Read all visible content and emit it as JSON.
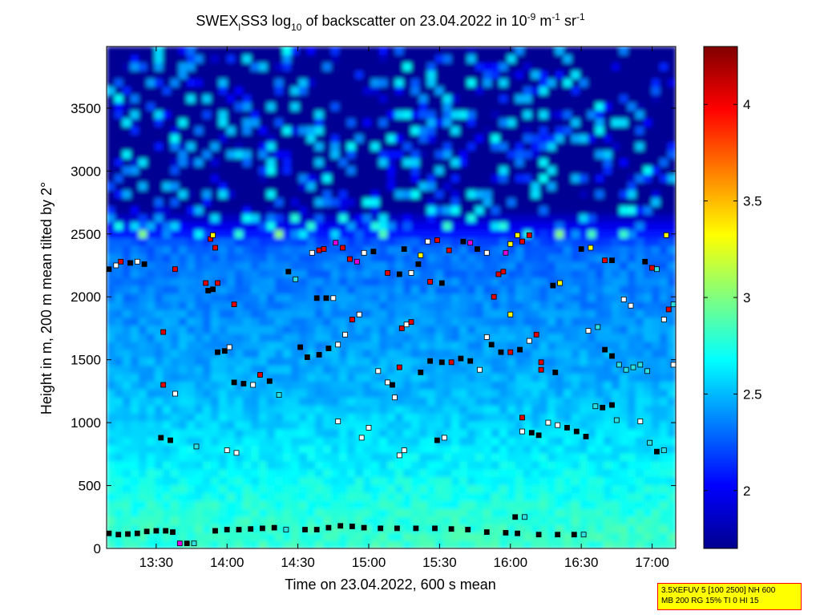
{
  "colors": {
    "background_low": "#00107a",
    "accent_high": "#800000",
    "info_box_bg": "#ffff00",
    "info_box_border": "#ff0000"
  },
  "chart_data": {
    "type": "heatmap",
    "title": {
      "prefix": "SWEX",
      "sub1": "l",
      "mid": "SS3 log",
      "sub2": "10",
      "after": " of backscatter on 23.04.2022 in 10",
      "sup1": "-9",
      "unit1": " m",
      "sup2": "-1",
      "unit2": " sr",
      "sup3": "-1"
    },
    "xlabel": "Time on 23.04.2022, 600 s mean",
    "ylabel": "Height in m, 200 m mean tilted by 2°",
    "x_range": [
      "13:09",
      "17:10"
    ],
    "ylim": [
      0,
      3990
    ],
    "x_ticks": [
      "13:30",
      "14:00",
      "14:30",
      "15:00",
      "15:30",
      "16:00",
      "16:30",
      "17:00"
    ],
    "y_ticks": [
      0,
      500,
      1000,
      1500,
      2000,
      2500,
      3000,
      3500
    ],
    "colorbar": {
      "range": [
        1.7,
        4.3
      ],
      "ticks": [
        "2",
        "2.5",
        "3",
        "3.5",
        "4"
      ],
      "colormap": "jet"
    },
    "field_description_levels": {
      "surface_0_150m": 2.8,
      "lower_150_1200m": 2.5,
      "middle_1200_2400m": 2.3,
      "upper_2400m_plus": 1.8
    },
    "markers": {
      "description": "cloud / layer detection squares, colour indicates backscatter level",
      "points": [
        {
          "t": "13:10",
          "h": 120,
          "c": "black"
        },
        {
          "t": "13:14",
          "h": 110,
          "c": "black"
        },
        {
          "t": "13:18",
          "h": 115,
          "c": "black"
        },
        {
          "t": "13:22",
          "h": 120,
          "c": "black"
        },
        {
          "t": "13:26",
          "h": 135,
          "c": "black"
        },
        {
          "t": "13:30",
          "h": 140,
          "c": "black"
        },
        {
          "t": "13:34",
          "h": 140,
          "c": "black"
        },
        {
          "t": "13:37",
          "h": 130,
          "c": "black"
        },
        {
          "t": "13:40",
          "h": 40,
          "c": "magenta"
        },
        {
          "t": "13:43",
          "h": 40,
          "c": "black"
        },
        {
          "t": "13:46",
          "h": 40,
          "c": "cyan"
        },
        {
          "t": "13:55",
          "h": 140,
          "c": "black"
        },
        {
          "t": "14:00",
          "h": 150,
          "c": "black"
        },
        {
          "t": "14:05",
          "h": 150,
          "c": "black"
        },
        {
          "t": "14:10",
          "h": 155,
          "c": "black"
        },
        {
          "t": "14:15",
          "h": 160,
          "c": "black"
        },
        {
          "t": "14:20",
          "h": 165,
          "c": "black"
        },
        {
          "t": "14:25",
          "h": 150,
          "c": "cyan"
        },
        {
          "t": "14:33",
          "h": 150,
          "c": "black"
        },
        {
          "t": "14:38",
          "h": 150,
          "c": "black"
        },
        {
          "t": "14:43",
          "h": 165,
          "c": "black"
        },
        {
          "t": "14:48",
          "h": 180,
          "c": "black"
        },
        {
          "t": "14:53",
          "h": 175,
          "c": "black"
        },
        {
          "t": "14:58",
          "h": 165,
          "c": "black"
        },
        {
          "t": "15:05",
          "h": 160,
          "c": "black"
        },
        {
          "t": "15:12",
          "h": 160,
          "c": "black"
        },
        {
          "t": "15:20",
          "h": 160,
          "c": "black"
        },
        {
          "t": "15:28",
          "h": 160,
          "c": "black"
        },
        {
          "t": "15:35",
          "h": 155,
          "c": "black"
        },
        {
          "t": "15:42",
          "h": 150,
          "c": "black"
        },
        {
          "t": "15:50",
          "h": 130,
          "c": "black"
        },
        {
          "t": "15:58",
          "h": 125,
          "c": "black"
        },
        {
          "t": "16:03",
          "h": 120,
          "c": "black"
        },
        {
          "t": "16:02",
          "h": 250,
          "c": "black"
        },
        {
          "t": "16:06",
          "h": 250,
          "c": "cyan"
        },
        {
          "t": "16:12",
          "h": 110,
          "c": "black"
        },
        {
          "t": "16:20",
          "h": 110,
          "c": "black"
        },
        {
          "t": "16:27",
          "h": 110,
          "c": "black"
        },
        {
          "t": "16:31",
          "h": 110,
          "c": "cyan"
        },
        {
          "t": "13:10",
          "h": 2220,
          "c": "black"
        },
        {
          "t": "13:13",
          "h": 2250,
          "c": "white"
        },
        {
          "t": "13:15",
          "h": 2280,
          "c": "red"
        },
        {
          "t": "13:19",
          "h": 2270,
          "c": "black"
        },
        {
          "t": "13:22",
          "h": 2280,
          "c": "white"
        },
        {
          "t": "13:25",
          "h": 2260,
          "c": "black"
        },
        {
          "t": "13:38",
          "h": 2220,
          "c": "red"
        },
        {
          "t": "13:51",
          "h": 2110,
          "c": "red"
        },
        {
          "t": "13:52",
          "h": 2050,
          "c": "black"
        },
        {
          "t": "13:54",
          "h": 2060,
          "c": "black"
        },
        {
          "t": "13:53",
          "h": 2460,
          "c": "red"
        },
        {
          "t": "13:54",
          "h": 2490,
          "c": "yellow"
        },
        {
          "t": "13:56",
          "h": 2110,
          "c": "red"
        },
        {
          "t": "13:55",
          "h": 2390,
          "c": "red"
        },
        {
          "t": "13:56",
          "h": 1560,
          "c": "black"
        },
        {
          "t": "13:59",
          "h": 1570,
          "c": "black"
        },
        {
          "t": "14:01",
          "h": 1600,
          "c": "white"
        },
        {
          "t": "14:03",
          "h": 1940,
          "c": "red"
        },
        {
          "t": "14:03",
          "h": 1320,
          "c": "black"
        },
        {
          "t": "14:07",
          "h": 1310,
          "c": "black"
        },
        {
          "t": "14:11",
          "h": 1300,
          "c": "white"
        },
        {
          "t": "14:14",
          "h": 1380,
          "c": "red"
        },
        {
          "t": "14:18",
          "h": 1330,
          "c": "black"
        },
        {
          "t": "13:33",
          "h": 1300,
          "c": "red"
        },
        {
          "t": "13:33",
          "h": 1720,
          "c": "red"
        },
        {
          "t": "13:38",
          "h": 1230,
          "c": "white"
        },
        {
          "t": "13:32",
          "h": 880,
          "c": "black"
        },
        {
          "t": "13:36",
          "h": 860,
          "c": "black"
        },
        {
          "t": "13:47",
          "h": 810,
          "c": "cyan"
        },
        {
          "t": "14:00",
          "h": 780,
          "c": "white"
        },
        {
          "t": "14:04",
          "h": 760,
          "c": "white"
        },
        {
          "t": "14:22",
          "h": 1220,
          "c": "cyan"
        },
        {
          "t": "14:26",
          "h": 2200,
          "c": "black"
        },
        {
          "t": "14:29",
          "h": 2140,
          "c": "cyan"
        },
        {
          "t": "14:31",
          "h": 1600,
          "c": "black"
        },
        {
          "t": "14:34",
          "h": 1520,
          "c": "black"
        },
        {
          "t": "14:39",
          "h": 1540,
          "c": "black"
        },
        {
          "t": "14:43",
          "h": 1590,
          "c": "black"
        },
        {
          "t": "14:47",
          "h": 1620,
          "c": "white"
        },
        {
          "t": "14:50",
          "h": 1700,
          "c": "white"
        },
        {
          "t": "14:53",
          "h": 1820,
          "c": "red"
        },
        {
          "t": "14:56",
          "h": 1860,
          "c": "white"
        },
        {
          "t": "14:36",
          "h": 2350,
          "c": "white"
        },
        {
          "t": "14:39",
          "h": 2370,
          "c": "red"
        },
        {
          "t": "14:41",
          "h": 2380,
          "c": "red"
        },
        {
          "t": "14:38",
          "h": 1990,
          "c": "black"
        },
        {
          "t": "14:42",
          "h": 1990,
          "c": "black"
        },
        {
          "t": "14:45",
          "h": 1990,
          "c": "white"
        },
        {
          "t": "14:46",
          "h": 2430,
          "c": "magenta"
        },
        {
          "t": "14:49",
          "h": 2390,
          "c": "red"
        },
        {
          "t": "14:52",
          "h": 2300,
          "c": "red"
        },
        {
          "t": "14:55",
          "h": 2280,
          "c": "magenta"
        },
        {
          "t": "14:58",
          "h": 2350,
          "c": "white"
        },
        {
          "t": "15:02",
          "h": 2360,
          "c": "black"
        },
        {
          "t": "14:47",
          "h": 1010,
          "c": "white"
        },
        {
          "t": "14:57",
          "h": 880,
          "c": "white"
        },
        {
          "t": "15:00",
          "h": 960,
          "c": "white"
        },
        {
          "t": "15:04",
          "h": 1410,
          "c": "white"
        },
        {
          "t": "15:08",
          "h": 1320,
          "c": "white"
        },
        {
          "t": "15:10",
          "h": 1300,
          "c": "black"
        },
        {
          "t": "15:11",
          "h": 1200,
          "c": "white"
        },
        {
          "t": "15:14",
          "h": 1750,
          "c": "red"
        },
        {
          "t": "15:16",
          "h": 1780,
          "c": "white"
        },
        {
          "t": "15:13",
          "h": 1440,
          "c": "red"
        },
        {
          "t": "15:18",
          "h": 1800,
          "c": "red"
        },
        {
          "t": "15:08",
          "h": 2190,
          "c": "red"
        },
        {
          "t": "15:13",
          "h": 2180,
          "c": "black"
        },
        {
          "t": "15:18",
          "h": 2190,
          "c": "white"
        },
        {
          "t": "15:21",
          "h": 2260,
          "c": "black"
        },
        {
          "t": "15:15",
          "h": 2380,
          "c": "black"
        },
        {
          "t": "15:22",
          "h": 2330,
          "c": "yellow"
        },
        {
          "t": "15:25",
          "h": 2440,
          "c": "white"
        },
        {
          "t": "15:29",
          "h": 2450,
          "c": "red"
        },
        {
          "t": "15:15",
          "h": 780,
          "c": "white"
        },
        {
          "t": "15:13",
          "h": 740,
          "c": "white"
        },
        {
          "t": "15:22",
          "h": 1400,
          "c": "black"
        },
        {
          "t": "15:26",
          "h": 1490,
          "c": "black"
        },
        {
          "t": "15:31",
          "h": 1480,
          "c": "black"
        },
        {
          "t": "15:35",
          "h": 1480,
          "c": "red"
        },
        {
          "t": "15:39",
          "h": 1510,
          "c": "black"
        },
        {
          "t": "15:43",
          "h": 1490,
          "c": "black"
        },
        {
          "t": "15:47",
          "h": 1420,
          "c": "white"
        },
        {
          "t": "15:26",
          "h": 2120,
          "c": "red"
        },
        {
          "t": "15:31",
          "h": 2110,
          "c": "black"
        },
        {
          "t": "15:34",
          "h": 2370,
          "c": "red"
        },
        {
          "t": "15:29",
          "h": 860,
          "c": "black"
        },
        {
          "t": "15:32",
          "h": 880,
          "c": "white"
        },
        {
          "t": "15:40",
          "h": 2440,
          "c": "black"
        },
        {
          "t": "15:43",
          "h": 2430,
          "c": "magenta"
        },
        {
          "t": "15:46",
          "h": 2380,
          "c": "black"
        },
        {
          "t": "15:50",
          "h": 2350,
          "c": "white"
        },
        {
          "t": "15:53",
          "h": 2000,
          "c": "red"
        },
        {
          "t": "15:55",
          "h": 2180,
          "c": "red"
        },
        {
          "t": "15:50",
          "h": 1680,
          "c": "white"
        },
        {
          "t": "15:52",
          "h": 1620,
          "c": "black"
        },
        {
          "t": "15:56",
          "h": 1560,
          "c": "black"
        },
        {
          "t": "16:00",
          "h": 1560,
          "c": "red"
        },
        {
          "t": "16:04",
          "h": 1580,
          "c": "black"
        },
        {
          "t": "16:08",
          "h": 1650,
          "c": "white"
        },
        {
          "t": "16:11",
          "h": 1700,
          "c": "red"
        },
        {
          "t": "15:58",
          "h": 2350,
          "c": "magenta"
        },
        {
          "t": "16:00",
          "h": 2420,
          "c": "yellow"
        },
        {
          "t": "16:03",
          "h": 2490,
          "c": "yellow"
        },
        {
          "t": "16:05",
          "h": 2440,
          "c": "red"
        },
        {
          "t": "16:08",
          "h": 2490,
          "c": "red"
        },
        {
          "t": "15:57",
          "h": 2200,
          "c": "red"
        },
        {
          "t": "16:00",
          "h": 1860,
          "c": "yellow"
        },
        {
          "t": "16:05",
          "h": 1040,
          "c": "red"
        },
        {
          "t": "16:05",
          "h": 930,
          "c": "white"
        },
        {
          "t": "16:09",
          "h": 920,
          "c": "black"
        },
        {
          "t": "16:12",
          "h": 900,
          "c": "black"
        },
        {
          "t": "16:16",
          "h": 1000,
          "c": "white"
        },
        {
          "t": "16:13",
          "h": 1480,
          "c": "red"
        },
        {
          "t": "16:13",
          "h": 1420,
          "c": "red"
        },
        {
          "t": "16:19",
          "h": 1400,
          "c": "black"
        },
        {
          "t": "16:18",
          "h": 2090,
          "c": "black"
        },
        {
          "t": "16:21",
          "h": 2110,
          "c": "yellow"
        },
        {
          "t": "16:20",
          "h": 980,
          "c": "white"
        },
        {
          "t": "16:24",
          "h": 960,
          "c": "black"
        },
        {
          "t": "16:28",
          "h": 930,
          "c": "black"
        },
        {
          "t": "16:32",
          "h": 890,
          "c": "black"
        },
        {
          "t": "16:30",
          "h": 2380,
          "c": "black"
        },
        {
          "t": "16:34",
          "h": 2390,
          "c": "yellow"
        },
        {
          "t": "16:40",
          "h": 2290,
          "c": "red"
        },
        {
          "t": "16:43",
          "h": 2290,
          "c": "black"
        },
        {
          "t": "16:33",
          "h": 1730,
          "c": "white"
        },
        {
          "t": "16:37",
          "h": 1760,
          "c": "cyan"
        },
        {
          "t": "16:36",
          "h": 1130,
          "c": "cyan"
        },
        {
          "t": "16:39",
          "h": 1120,
          "c": "black"
        },
        {
          "t": "16:43",
          "h": 1140,
          "c": "black"
        },
        {
          "t": "16:40",
          "h": 1580,
          "c": "black"
        },
        {
          "t": "16:43",
          "h": 1530,
          "c": "black"
        },
        {
          "t": "16:46",
          "h": 1460,
          "c": "cyan"
        },
        {
          "t": "16:49",
          "h": 1420,
          "c": "cyan"
        },
        {
          "t": "16:52",
          "h": 1440,
          "c": "cyan"
        },
        {
          "t": "16:55",
          "h": 1460,
          "c": "cyan"
        },
        {
          "t": "16:58",
          "h": 1410,
          "c": "cyan"
        },
        {
          "t": "16:45",
          "h": 1020,
          "c": "cyan"
        },
        {
          "t": "16:55",
          "h": 1010,
          "c": "white"
        },
        {
          "t": "16:48",
          "h": 1980,
          "c": "white"
        },
        {
          "t": "16:51",
          "h": 1930,
          "c": "white"
        },
        {
          "t": "16:57",
          "h": 2280,
          "c": "black"
        },
        {
          "t": "17:00",
          "h": 2230,
          "c": "red"
        },
        {
          "t": "17:02",
          "h": 2220,
          "c": "cyan"
        },
        {
          "t": "17:05",
          "h": 1820,
          "c": "white"
        },
        {
          "t": "17:07",
          "h": 1900,
          "c": "red"
        },
        {
          "t": "17:09",
          "h": 1940,
          "c": "cyan"
        },
        {
          "t": "17:02",
          "h": 770,
          "c": "black"
        },
        {
          "t": "17:05",
          "h": 780,
          "c": "cyan"
        },
        {
          "t": "16:59",
          "h": 840,
          "c": "cyan"
        },
        {
          "t": "17:06",
          "h": 2490,
          "c": "yellow"
        },
        {
          "t": "17:09",
          "h": 1460,
          "c": "white"
        }
      ]
    }
  },
  "info_box": {
    "line1": "3.5XEFUV 5 [100 2500] NH 600",
    "line2": "MB 200 RG 15% TI 0 HI 15"
  }
}
